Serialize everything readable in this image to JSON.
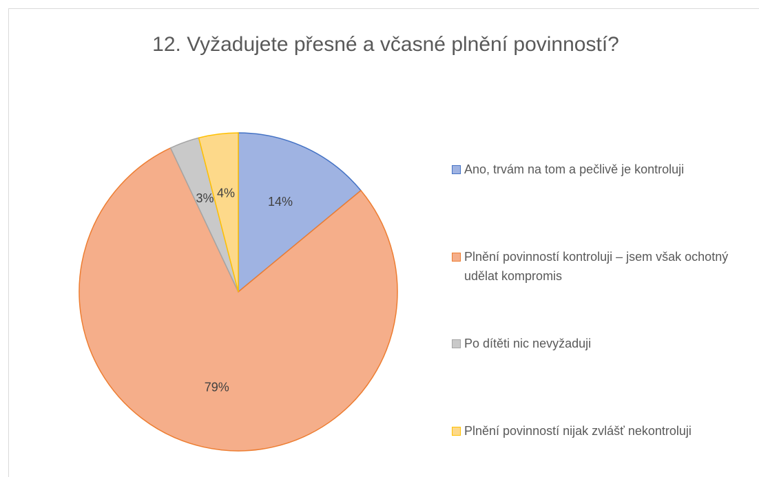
{
  "chart_data": {
    "type": "pie",
    "title": "12. Vyžadujete přesné a včasné plnění povinností?",
    "categories": [
      "Ano, trvám na tom a pečlivě je kontroluji",
      "Plnění povinností kontroluji – jsem však ochotný udělat kompromis",
      "Po dítěti nic nevyžaduji",
      "Plnění povinností nijak zvlášť nekontroluji"
    ],
    "values": [
      14,
      79,
      3,
      4
    ],
    "value_labels": [
      "14%",
      "79%",
      "3%",
      "4%"
    ],
    "colors": [
      "#9fb3e2",
      "#f5ae8a",
      "#c9c9c9",
      "#fdd98a"
    ],
    "edge_colors": [
      "#4472c4",
      "#ed7d31",
      "#a5a5a5",
      "#ffc000"
    ],
    "legend": "right"
  }
}
